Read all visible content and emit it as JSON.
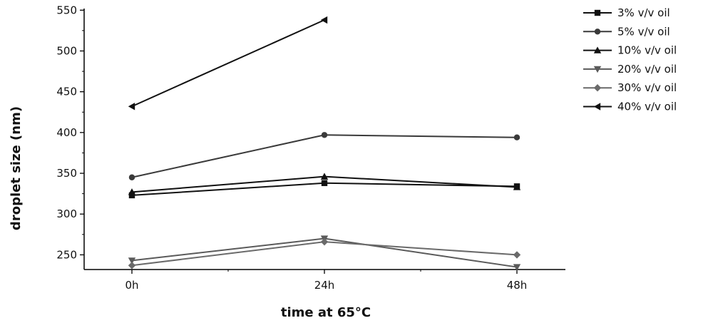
{
  "chart_data": {
    "type": "line",
    "title": "",
    "xlabel": "time at 65°C",
    "ylabel": "droplet size (nm)",
    "categories": [
      "0h",
      "24h",
      "48h"
    ],
    "yticks": [
      "250",
      "300",
      "350",
      "400",
      "450",
      "500",
      "550"
    ],
    "ylim": [
      232,
      552
    ],
    "grid": false,
    "legend_position": "top-right",
    "series": [
      {
        "name": "3% v/v oil",
        "marker": "square",
        "color": "#111111",
        "values": [
          323,
          338,
          334
        ]
      },
      {
        "name": "5% v/v oil",
        "marker": "circle",
        "color": "#3a3a3a",
        "values": [
          345,
          397,
          394
        ]
      },
      {
        "name": "10% v/v oil",
        "marker": "triangle-up",
        "color": "#111111",
        "values": [
          327,
          346,
          333
        ]
      },
      {
        "name": "20% v/v oil",
        "marker": "triangle-down",
        "color": "#5a5a5a",
        "values": [
          243,
          270,
          235
        ]
      },
      {
        "name": "30% v/v oil",
        "marker": "diamond",
        "color": "#6a6a6a",
        "values": [
          237,
          266,
          250
        ]
      },
      {
        "name": "40% v/v oil",
        "marker": "triangle-left",
        "color": "#111111",
        "values": [
          432,
          538,
          null
        ]
      }
    ]
  }
}
